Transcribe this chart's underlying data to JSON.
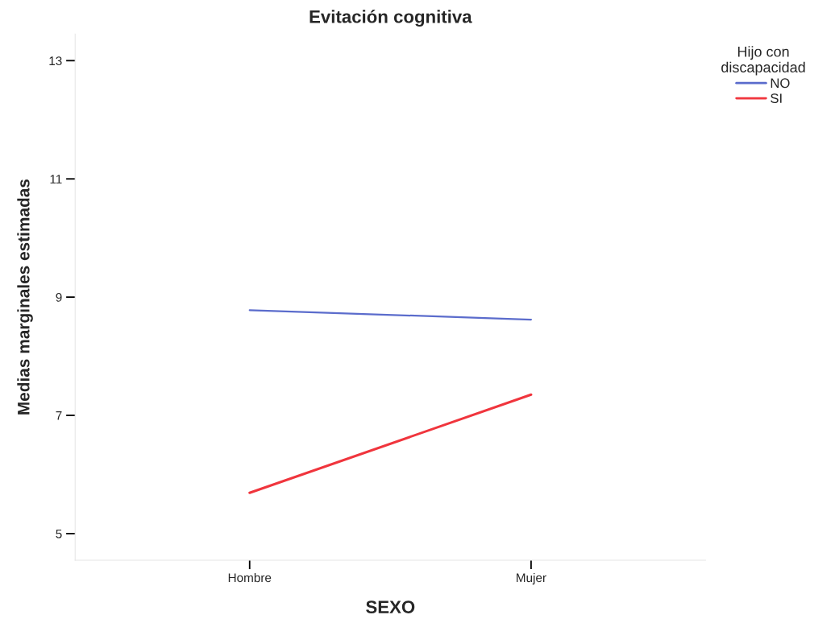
{
  "chart_data": {
    "type": "line",
    "title": "Evitación cognitiva",
    "xlabel": "SEXO",
    "ylabel": "Medias marginales estimadas",
    "legend_title": "Hijo con\ndiscapacidad",
    "categories": [
      "Hombre",
      "Mujer"
    ],
    "series": [
      {
        "name": "NO",
        "color": "#5b6ccc",
        "values": [
          8.78,
          8.62
        ]
      },
      {
        "name": "SI",
        "color": "#f0353d",
        "values": [
          5.69,
          7.35
        ]
      }
    ],
    "ylim": [
      4.55,
      13.45
    ],
    "yticks": [
      5,
      7,
      9,
      11,
      13
    ],
    "grid": false,
    "legend": "top right",
    "marker": "none",
    "line_style": "solid"
  }
}
